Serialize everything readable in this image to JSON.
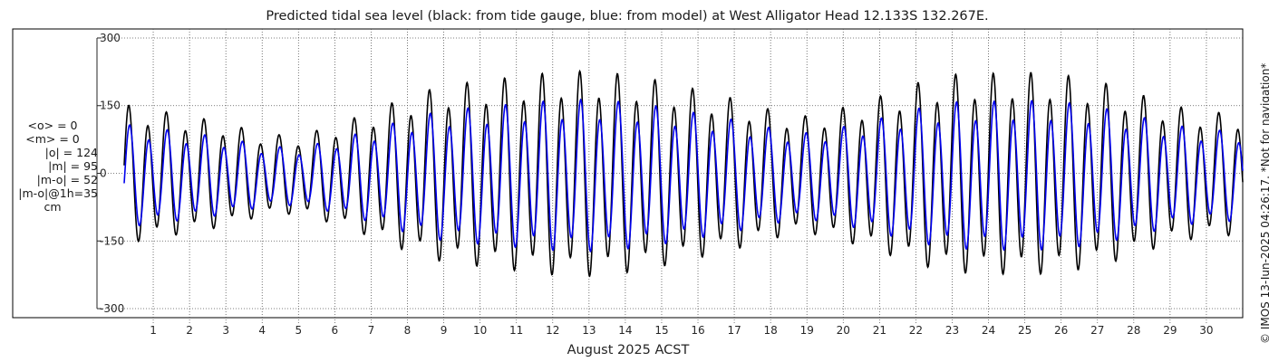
{
  "chart_data": {
    "type": "line",
    "title": "Predicted tidal sea level (black: from tide gauge, blue: from model) at West Alligator Head 12.133S 132.267E.",
    "xlabel": "August 2025 ACST",
    "ylabel": "",
    "units": "cm",
    "ylim": [
      -320,
      320
    ],
    "yticks": [
      300,
      150,
      0,
      -150,
      -300
    ],
    "xlim": [
      0.2,
      31.0
    ],
    "xticks": [
      "1",
      "2",
      "3",
      "4",
      "5",
      "6",
      "7",
      "8",
      "9",
      "10",
      "11",
      "12",
      "13",
      "14",
      "15",
      "16",
      "17",
      "18",
      "19",
      "20",
      "21",
      "22",
      "23",
      "24",
      "25",
      "26",
      "27",
      "28",
      "29",
      "30"
    ],
    "grid": true,
    "series": [
      {
        "name": "tide gauge",
        "color": "#000000",
        "amplitude_profile": {
          "day": [
            0.3,
            1,
            2,
            3,
            4,
            5,
            6,
            7,
            8,
            9,
            10,
            11,
            12,
            13,
            14,
            15,
            16,
            17,
            18,
            19,
            20,
            21,
            22,
            23,
            24,
            25,
            26,
            27,
            28,
            29,
            30,
            31
          ],
          "amplitude": [
            160,
            150,
            135,
            120,
            95,
            90,
            115,
            145,
            180,
            205,
            215,
            225,
            235,
            238,
            230,
            215,
            195,
            175,
            150,
            135,
            155,
            180,
            210,
            230,
            232,
            235,
            230,
            215,
            190,
            160,
            145,
            140
          ]
        },
        "mean_offset": -5,
        "diurnal_inequality": 0.3
      },
      {
        "name": "model",
        "color": "#0000ee",
        "amplitude_scale": 0.74,
        "phase_shift_hours": 0.6,
        "mean_offset": -8
      }
    ]
  },
  "stats": {
    "lines": [
      "<o> = 0",
      "<m> = 0",
      "|o| = 124",
      "|m| = 95",
      "|m-o| = 52",
      "|m-o|@1h=35"
    ],
    "unit": "cm"
  },
  "watermark": "© IMOS 13-Jun-2025 04:26:17. *Not for navigation*"
}
